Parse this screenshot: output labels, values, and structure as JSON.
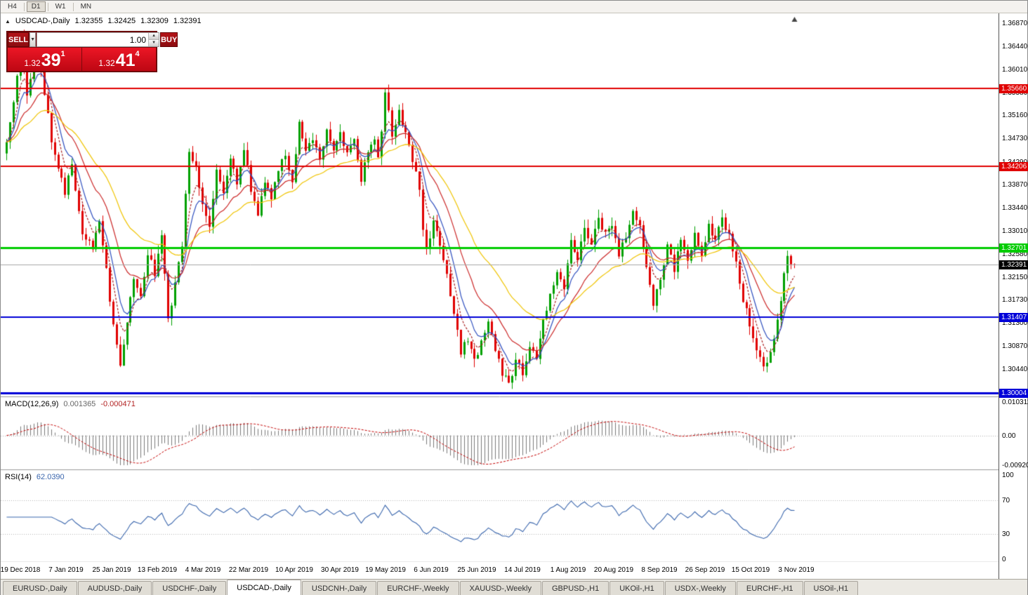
{
  "window": {
    "app": "MetaTrader",
    "active_chart": "USDCAD-,Daily"
  },
  "toolbar": {
    "timeframes": [
      {
        "label": "H4",
        "active": false
      },
      {
        "label": "D1",
        "active": true
      },
      {
        "label": "W1",
        "active": false
      },
      {
        "label": "MN",
        "active": false
      }
    ]
  },
  "symbol_header": {
    "marker": "▲",
    "symbol": "USDCAD-,Daily",
    "open": "1.32355",
    "high": "1.32425",
    "low": "1.32309",
    "close": "1.32391"
  },
  "one_click": {
    "sell_label": "SELL",
    "buy_label": "BUY",
    "volume": "1.00",
    "sell_price": {
      "small": "1.32",
      "big": "39",
      "sup": "1"
    },
    "buy_price": {
      "small": "1.32",
      "big": "41",
      "sup": "4"
    }
  },
  "macd_panel": {
    "label": "MACD(12,26,9)",
    "value_main": "0.001365",
    "value_signal": "-0.000471",
    "axis": [
      "0.010311",
      "0.00",
      "-0.009203"
    ]
  },
  "rsi_panel": {
    "label": "RSI(14)",
    "value": "62.0390",
    "axis": [
      "100",
      "70",
      "30",
      "0"
    ]
  },
  "y_axis": {
    "ticks": [
      "1.36870",
      "1.36440",
      "1.36010",
      "1.35580",
      "1.35160",
      "1.34730",
      "1.34290",
      "1.33870",
      "1.33440",
      "1.33010",
      "1.32580",
      "1.32150",
      "1.31730",
      "1.31300",
      "1.30870",
      "1.30440"
    ]
  },
  "x_axis": {
    "labels": [
      "19 Dec 2018",
      "7 Jan 2019",
      "25 Jan 2019",
      "13 Feb 2019",
      "4 Mar 2019",
      "22 Mar 2019",
      "10 Apr 2019",
      "30 Apr 2019",
      "19 May 2019",
      "6 Jun 2019",
      "25 Jun 2019",
      "14 Jul 2019",
      "1 Aug 2019",
      "20 Aug 2019",
      "8 Sep 2019",
      "26 Sep 2019",
      "15 Oct 2019",
      "3 Nov 2019"
    ]
  },
  "levels": [
    {
      "price": 1.3566,
      "label": "1.35660",
      "color": "#e00000",
      "width": 2
    },
    {
      "price": 1.34206,
      "label": "1.34206",
      "color": "#e00000",
      "width": 2
    },
    {
      "price": 1.32701,
      "label": "1.32701",
      "color": "#00cc00",
      "width": 3
    },
    {
      "price": 1.31407,
      "label": "1.31407",
      "color": "#0000d8",
      "width": 2
    },
    {
      "price": 1.30004,
      "label": "1.30004",
      "color": "#0000d8",
      "width": 3
    }
  ],
  "current_price": {
    "value": 1.32391,
    "label": "1.32391",
    "tag_bg": "#000000"
  },
  "tabs": {
    "active_index": 3,
    "items": [
      "EURUSD-,Daily",
      "AUDUSD-,Daily",
      "USDCHF-,Daily",
      "USDCAD-,Daily",
      "USDCNH-,Daily",
      "EURCHF-,Weekly",
      "XAUUSD-,Weekly",
      "GBPUSD-,H1",
      "UKOil-,H1",
      "USDX-,Weekly",
      "EURCHF-,H1",
      "USOil-,H1"
    ]
  },
  "chart_data": {
    "type": "candlestick",
    "symbol": "USDCAD",
    "timeframe": "Daily",
    "title": "USDCAD-,Daily",
    "ohlc_current": {
      "open": 1.32355,
      "high": 1.32425,
      "low": 1.32309,
      "close": 1.32391
    },
    "y_range": [
      1.2995,
      1.37
    ],
    "candles": 230,
    "seed": 20191108,
    "noise": 0.0016,
    "wick": 0.0016,
    "last_close": 1.32391,
    "colors": {
      "bull": "#00a000",
      "bear": "#e00000",
      "bid_line": "#a8a8a8",
      "macd_hist": "#7a7a7a",
      "macd_signal": "#c40000",
      "rsi_line": "#3a66ad",
      "rsi_levels": "#b4b4b4"
    },
    "moving_averages": [
      {
        "period": 5,
        "color": "#aa2222",
        "style": "dash"
      },
      {
        "period": 8,
        "color": "#2f4fbf",
        "style": "solid"
      },
      {
        "period": 17,
        "color": "#cc2929",
        "style": "solid"
      },
      {
        "period": 34,
        "color": "#f0c400",
        "style": "solid"
      }
    ],
    "indicators": {
      "macd": [
        12,
        26,
        9
      ],
      "rsi": 14
    },
    "macd_scale": {
      "max": 0.010311,
      "min": -0.009203
    },
    "rsi_levels": [
      70,
      30
    ],
    "price_path": [
      [
        0,
        1.3445
      ],
      [
        2,
        1.35
      ],
      [
        4,
        1.359
      ],
      [
        5,
        1.3655
      ],
      [
        7,
        1.356
      ],
      [
        9,
        1.362
      ],
      [
        10,
        1.365
      ],
      [
        12,
        1.3555
      ],
      [
        14,
        1.347
      ],
      [
        16,
        1.3415
      ],
      [
        18,
        1.3375
      ],
      [
        20,
        1.342
      ],
      [
        23,
        1.33
      ],
      [
        26,
        1.327
      ],
      [
        28,
        1.3315
      ],
      [
        30,
        1.3235
      ],
      [
        32,
        1.312
      ],
      [
        34,
        1.3058
      ],
      [
        36,
        1.313
      ],
      [
        38,
        1.3215
      ],
      [
        40,
        1.3185
      ],
      [
        42,
        1.326
      ],
      [
        44,
        1.3225
      ],
      [
        46,
        1.3295
      ],
      [
        48,
        1.314
      ],
      [
        50,
        1.32
      ],
      [
        52,
        1.328
      ],
      [
        54,
        1.3455
      ],
      [
        56,
        1.342
      ],
      [
        58,
        1.3345
      ],
      [
        60,
        1.331
      ],
      [
        62,
        1.342
      ],
      [
        64,
        1.3375
      ],
      [
        66,
        1.344
      ],
      [
        68,
        1.339
      ],
      [
        70,
        1.3455
      ],
      [
        72,
        1.338
      ],
      [
        74,
        1.3335
      ],
      [
        76,
        1.339
      ],
      [
        78,
        1.336
      ],
      [
        80,
        1.342
      ],
      [
        82,
        1.344
      ],
      [
        84,
        1.339
      ],
      [
        86,
        1.35
      ],
      [
        88,
        1.345
      ],
      [
        90,
        1.347
      ],
      [
        92,
        1.344
      ],
      [
        94,
        1.349
      ],
      [
        96,
        1.345
      ],
      [
        98,
        1.348
      ],
      [
        100,
        1.344
      ],
      [
        102,
        1.347
      ],
      [
        104,
        1.34
      ],
      [
        106,
        1.3445
      ],
      [
        108,
        1.347
      ],
      [
        109,
        1.343
      ],
      [
        110,
        1.349
      ],
      [
        111,
        1.3555
      ],
      [
        112,
        1.352
      ],
      [
        113,
        1.348
      ],
      [
        115,
        1.353
      ],
      [
        117,
        1.348
      ],
      [
        119,
        1.343
      ],
      [
        121,
        1.3385
      ],
      [
        122,
        1.3305
      ],
      [
        123,
        1.3275
      ],
      [
        125,
        1.3315
      ],
      [
        127,
        1.328
      ],
      [
        129,
        1.322
      ],
      [
        131,
        1.315
      ],
      [
        133,
        1.3075
      ],
      [
        135,
        1.31
      ],
      [
        137,
        1.3058
      ],
      [
        139,
        1.309
      ],
      [
        141,
        1.313
      ],
      [
        143,
        1.308
      ],
      [
        145,
        1.304
      ],
      [
        147,
        1.302
      ],
      [
        149,
        1.3058
      ],
      [
        151,
        1.304
      ],
      [
        153,
        1.309
      ],
      [
        155,
        1.3062
      ],
      [
        157,
        1.313
      ],
      [
        159,
        1.318
      ],
      [
        161,
        1.323
      ],
      [
        163,
        1.32
      ],
      [
        165,
        1.328
      ],
      [
        167,
        1.3242
      ],
      [
        169,
        1.331
      ],
      [
        171,
        1.3272
      ],
      [
        173,
        1.333
      ],
      [
        175,
        1.3292
      ],
      [
        177,
        1.3312
      ],
      [
        179,
        1.3252
      ],
      [
        181,
        1.3292
      ],
      [
        183,
        1.334
      ],
      [
        185,
        1.3312
      ],
      [
        187,
        1.3232
      ],
      [
        189,
        1.316
      ],
      [
        191,
        1.3212
      ],
      [
        193,
        1.327
      ],
      [
        195,
        1.3232
      ],
      [
        197,
        1.3282
      ],
      [
        199,
        1.3242
      ],
      [
        201,
        1.3292
      ],
      [
        203,
        1.3262
      ],
      [
        205,
        1.331
      ],
      [
        207,
        1.3282
      ],
      [
        209,
        1.333
      ],
      [
        211,
        1.3292
      ],
      [
        213,
        1.3242
      ],
      [
        215,
        1.3172
      ],
      [
        217,
        1.313
      ],
      [
        219,
        1.3082
      ],
      [
        221,
        1.3048
      ],
      [
        223,
        1.3072
      ],
      [
        225,
        1.314
      ],
      [
        226,
        1.317
      ],
      [
        227,
        1.3215
      ],
      [
        228,
        1.325
      ],
      [
        229,
        1.3235
      ],
      [
        230,
        1.3239
      ]
    ]
  }
}
